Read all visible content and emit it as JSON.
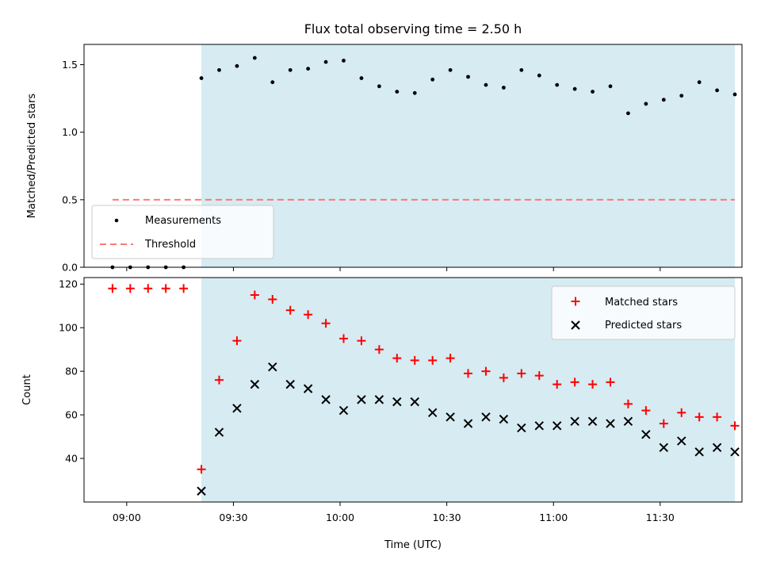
{
  "chart_data": [
    {
      "type": "scatter",
      "title": "Flux total observing time = 2.50 h",
      "ylabel": "Matched/Predicted stars",
      "xlabel": "",
      "xlim": [
        "08:48",
        "11:53"
      ],
      "ylim": [
        0,
        1.65
      ],
      "yticks": [
        "0.0",
        "0.5",
        "1.0",
        "1.5"
      ],
      "shaded_region": {
        "start": "09:21",
        "end": "11:51",
        "color": "#add8e6"
      },
      "legend": {
        "placement": "lower-left",
        "entries": [
          "Measurements",
          "Threshold"
        ]
      },
      "series": [
        {
          "name": "Measurements",
          "marker": "dot",
          "color": "#000000",
          "x": [
            "08:56",
            "09:01",
            "09:06",
            "09:11",
            "09:16",
            "09:21",
            "09:26",
            "09:31",
            "09:36",
            "09:41",
            "09:46",
            "09:51",
            "09:56",
            "10:01",
            "10:06",
            "10:11",
            "10:16",
            "10:21",
            "10:26",
            "10:31",
            "10:36",
            "10:41",
            "10:46",
            "10:51",
            "10:56",
            "11:01",
            "11:06",
            "11:11",
            "11:16",
            "11:21",
            "11:26",
            "11:31",
            "11:36",
            "11:41",
            "11:46",
            "11:51"
          ],
          "y": [
            0,
            0,
            0,
            0,
            0,
            1.4,
            1.46,
            1.49,
            1.55,
            1.37,
            1.46,
            1.47,
            1.52,
            1.53,
            1.4,
            1.34,
            1.3,
            1.29,
            1.39,
            1.46,
            1.41,
            1.35,
            1.33,
            1.46,
            1.42,
            1.35,
            1.32,
            1.3,
            1.34,
            1.14,
            1.21,
            1.24,
            1.27,
            1.37,
            1.31,
            1.28
          ]
        },
        {
          "name": "Threshold",
          "style": "dashed",
          "color": "#ff7777",
          "x": [
            "08:56",
            "11:51"
          ],
          "y": [
            0.5,
            0.5
          ]
        }
      ]
    },
    {
      "type": "scatter",
      "title": "",
      "ylabel": "Count",
      "xlabel": "Time (UTC)",
      "xlim": [
        "08:48",
        "11:53"
      ],
      "ylim": [
        20,
        123
      ],
      "yticks": [
        "40",
        "60",
        "80",
        "100",
        "120"
      ],
      "xticks": [
        "09:00",
        "09:30",
        "10:00",
        "10:30",
        "11:00",
        "11:30"
      ],
      "shaded_region": {
        "start": "09:21",
        "end": "11:51",
        "color": "#add8e6"
      },
      "legend": {
        "placement": "upper-right",
        "entries": [
          "Matched stars",
          "Predicted stars"
        ]
      },
      "series": [
        {
          "name": "Matched stars",
          "marker": "plus",
          "color": "#ff0000",
          "x": [
            "08:56",
            "09:01",
            "09:06",
            "09:11",
            "09:16",
            "09:21",
            "09:26",
            "09:31",
            "09:36",
            "09:41",
            "09:46",
            "09:51",
            "09:56",
            "10:01",
            "10:06",
            "10:11",
            "10:16",
            "10:21",
            "10:26",
            "10:31",
            "10:36",
            "10:41",
            "10:46",
            "10:51",
            "10:56",
            "11:01",
            "11:06",
            "11:11",
            "11:16",
            "11:21",
            "11:26",
            "11:31",
            "11:36",
            "11:41",
            "11:46",
            "11:51"
          ],
          "y": [
            118,
            118,
            118,
            118,
            118,
            35,
            76,
            94,
            115,
            113,
            108,
            106,
            102,
            95,
            94,
            90,
            86,
            85,
            85,
            86,
            79,
            80,
            77,
            79,
            78,
            74,
            75,
            74,
            75,
            65,
            62,
            56,
            61,
            59,
            59,
            55
          ]
        },
        {
          "name": "Predicted stars",
          "marker": "x",
          "color": "#000000",
          "x": [
            "09:21",
            "09:26",
            "09:31",
            "09:36",
            "09:41",
            "09:46",
            "09:51",
            "09:56",
            "10:01",
            "10:06",
            "10:11",
            "10:16",
            "10:21",
            "10:26",
            "10:31",
            "10:36",
            "10:41",
            "10:46",
            "10:51",
            "10:56",
            "11:01",
            "11:06",
            "11:11",
            "11:16",
            "11:21",
            "11:26",
            "11:31",
            "11:36",
            "11:41",
            "11:46",
            "11:51"
          ],
          "y": [
            25,
            52,
            63,
            74,
            82,
            74,
            72,
            67,
            62,
            67,
            67,
            66,
            66,
            61,
            59,
            56,
            59,
            58,
            54,
            55,
            55,
            57,
            57,
            56,
            57,
            51,
            45,
            48,
            43,
            45,
            43
          ]
        }
      ]
    }
  ]
}
